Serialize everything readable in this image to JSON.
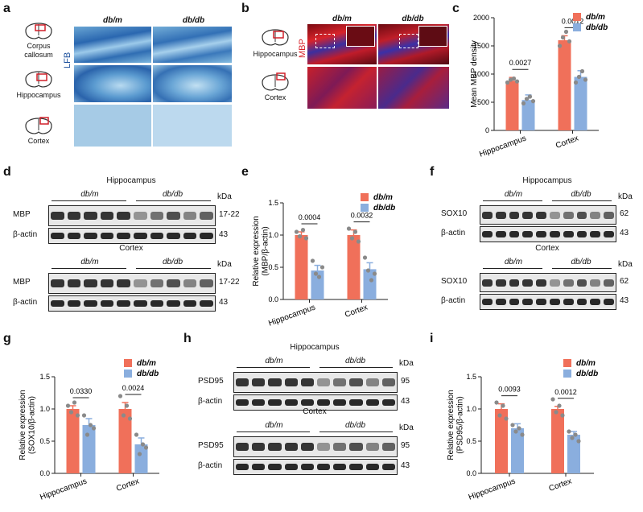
{
  "panel_letters": [
    "a",
    "b",
    "c",
    "d",
    "e",
    "f",
    "g",
    "h",
    "i"
  ],
  "colors": {
    "dbm": "#f0705a",
    "dbdb": "#8aaede",
    "lfb_dark": "#1b4f9c",
    "lfb_light": "#a9cde6",
    "mbp_red": "#d8232a",
    "blue_stain": "#2a2f9b"
  },
  "icons": [
    "coronal-brain-section-icon"
  ],
  "panel_a": {
    "stain_label": "LFB",
    "col_headers": [
      "db/m",
      "db/db"
    ],
    "rows": [
      "Corpus callosum",
      "Hippocampus",
      "Cortex"
    ]
  },
  "panel_b": {
    "stain_label": "MBP",
    "col_headers": [
      "db/m",
      "db/db"
    ],
    "rows": [
      "Hippocampus",
      "Cortex"
    ]
  },
  "blots": {
    "d": {
      "groups": [
        "db/m",
        "db/db"
      ],
      "region1": "Hippocampus",
      "region2": "Cortex",
      "kda_label": "kDa",
      "rows": [
        {
          "label": "MBP",
          "size": "17-22"
        },
        {
          "label": "β-actin",
          "size": "43"
        },
        {
          "label": "MBP",
          "size": "17-22"
        },
        {
          "label": "β-actin",
          "size": "43"
        }
      ]
    },
    "f": {
      "groups": [
        "db/m",
        "db/db"
      ],
      "region1": "Hippocampus",
      "region2": "Cortex",
      "kda_label": "kDa",
      "rows": [
        {
          "label": "SOX10",
          "size": "62"
        },
        {
          "label": "β-actin",
          "size": "43"
        },
        {
          "label": "SOX10",
          "size": "62"
        },
        {
          "label": "β-actin",
          "size": "43"
        }
      ]
    },
    "h": {
      "groups": [
        "db/m",
        "db/db"
      ],
      "region1": "Hippocampus",
      "region2": "Cortex",
      "kda_label": "kDa",
      "rows": [
        {
          "label": "PSD95",
          "size": "95"
        },
        {
          "label": "β-actin",
          "size": "43"
        },
        {
          "label": "PSD95",
          "size": "95"
        },
        {
          "label": "β-actin",
          "size": "43"
        }
      ]
    }
  },
  "chart_data": [
    {
      "panel": "c",
      "type": "bar",
      "categories": [
        "Hippocampus",
        "Cortex"
      ],
      "series": [
        {
          "name": "db/m",
          "values": [
            880,
            1600
          ]
        },
        {
          "name": "db/db",
          "values": [
            540,
            950
          ]
        }
      ],
      "errors": [
        [
          60,
          90
        ],
        [
          80,
          110
        ]
      ],
      "points": [
        [
          [
            850,
            900,
            920,
            870
          ],
          [
            480,
            560,
            600,
            520
          ]
        ],
        [
          [
            1500,
            1650,
            1750,
            1580
          ],
          [
            850,
            950,
            1050,
            900
          ]
        ]
      ],
      "pvalues": [
        "0.0027",
        "0.0012"
      ],
      "xlabel": "",
      "ylabel": "Mean MBP density",
      "ylim": [
        0,
        2000
      ],
      "yticks": [
        0,
        500,
        1000,
        1500,
        2000
      ],
      "legend": "top-right"
    },
    {
      "panel": "e",
      "type": "bar",
      "categories": [
        "Hippocampus",
        "Cortex"
      ],
      "series": [
        {
          "name": "db/m",
          "values": [
            1.0,
            1.0
          ]
        },
        {
          "name": "db/db",
          "values": [
            0.45,
            0.47
          ]
        }
      ],
      "errors": [
        [
          0.05,
          0.08
        ],
        [
          0.08,
          0.1
        ]
      ],
      "points": [
        [
          [
            1.05,
            0.98,
            1.08,
            0.95
          ],
          [
            0.6,
            0.4,
            0.35,
            0.5
          ]
        ],
        [
          [
            1.1,
            0.95,
            1.05,
            0.9
          ],
          [
            0.65,
            0.45,
            0.3,
            0.4
          ]
        ]
      ],
      "pvalues": [
        "0.0004",
        "0.0032"
      ],
      "xlabel": "",
      "ylabel": "Relative expression (MBP/β-actin)",
      "ylim": [
        0,
        1.5
      ],
      "yticks": [
        0.0,
        0.5,
        1.0,
        1.5
      ],
      "legend": "top-right"
    },
    {
      "panel": "g",
      "type": "bar",
      "categories": [
        "Hippocampus",
        "Cortex"
      ],
      "series": [
        {
          "name": "db/m",
          "values": [
            1.0,
            1.0
          ]
        },
        {
          "name": "db/db",
          "values": [
            0.75,
            0.45
          ]
        }
      ],
      "errors": [
        [
          0.05,
          0.1
        ],
        [
          0.1,
          0.1
        ]
      ],
      "points": [
        [
          [
            1.05,
            0.95,
            1.1,
            0.9
          ],
          [
            0.9,
            0.6,
            0.75,
            0.7
          ]
        ],
        [
          [
            1.2,
            0.9,
            1.05,
            0.85
          ],
          [
            0.6,
            0.3,
            0.45,
            0.4
          ]
        ]
      ],
      "pvalues": [
        "0.0330",
        "0.0024"
      ],
      "xlabel": "",
      "ylabel": "Relative expression (SOX10/β-actin)",
      "ylim": [
        0,
        1.5
      ],
      "yticks": [
        0.0,
        0.5,
        1.0,
        1.5
      ],
      "legend": "top-right"
    },
    {
      "panel": "i",
      "type": "bar",
      "categories": [
        "Hippocampus",
        "Cortex"
      ],
      "series": [
        {
          "name": "db/m",
          "values": [
            1.0,
            1.0
          ]
        },
        {
          "name": "db/db",
          "values": [
            0.7,
            0.6
          ]
        }
      ],
      "errors": [
        [
          0.08,
          0.07
        ],
        [
          0.04,
          0.05
        ]
      ],
      "points": [
        [
          [
            1.1,
            0.9,
            1.05,
            0.85
          ],
          [
            0.75,
            0.65,
            0.7,
            0.6
          ]
        ],
        [
          [
            1.15,
            0.95,
            1.05,
            0.9
          ],
          [
            0.65,
            0.55,
            0.6,
            0.5
          ]
        ]
      ],
      "pvalues": [
        "0.0093",
        "0.0012"
      ],
      "xlabel": "",
      "ylabel": "Relative expression (PSD95/β-actin)",
      "ylim": [
        0,
        1.5
      ],
      "yticks": [
        0.0,
        0.5,
        1.0,
        1.5
      ],
      "legend": "top-right"
    }
  ]
}
